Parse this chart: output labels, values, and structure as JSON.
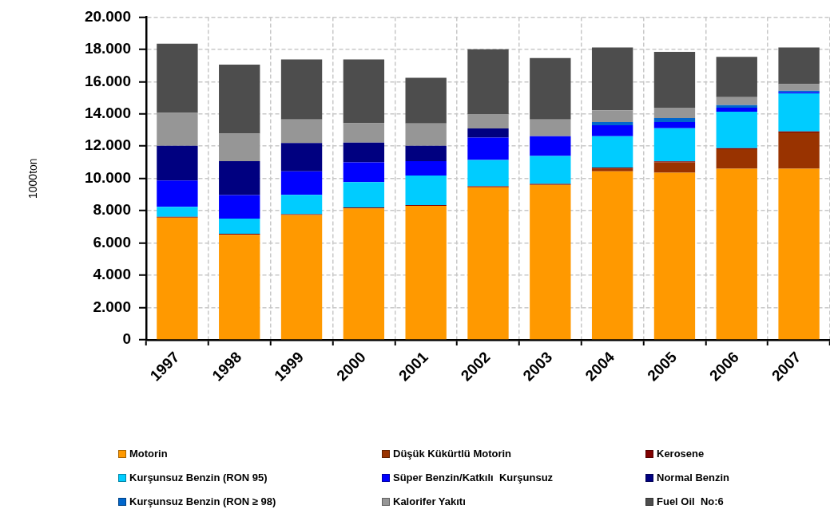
{
  "chart_data": {
    "type": "bar",
    "stacked": true,
    "ylabel": "1000ton",
    "categories": [
      "1997",
      "1998",
      "1999",
      "2000",
      "2001",
      "2002",
      "2003",
      "2004",
      "2005",
      "2006",
      "2007"
    ],
    "series": [
      {
        "name": "Motorin",
        "color": "#ff9900",
        "values": [
          7570,
          6510,
          7730,
          8140,
          8300,
          9450,
          9600,
          10440,
          10360,
          10600,
          10600
        ]
      },
      {
        "name": "Düşük Kükürtlü Motorin",
        "color": "#993300",
        "values": [
          0,
          0,
          0,
          0,
          0,
          0,
          0,
          180,
          640,
          1210,
          2250
        ]
      },
      {
        "name": "Kerosene",
        "color": "#800000",
        "values": [
          60,
          60,
          60,
          60,
          60,
          60,
          60,
          60,
          60,
          60,
          60
        ]
      },
      {
        "name": "Kurşunsuz Benzin (RON 95)",
        "color": "#00ccff",
        "values": [
          610,
          940,
          1190,
          1580,
          1820,
          1640,
          1740,
          1940,
          2050,
          2270,
          2360
        ]
      },
      {
        "name": "Süper Benzin/Katkılı  Kurşunsuz",
        "color": "#0000ff",
        "values": [
          1630,
          1460,
          1460,
          1220,
          890,
          1380,
          1220,
          680,
          390,
          240,
          80
        ]
      },
      {
        "name": "Normal Benzin",
        "color": "#000080",
        "values": [
          2160,
          2100,
          1760,
          1220,
          960,
          570,
          0,
          0,
          0,
          0,
          0
        ]
      },
      {
        "name": "Kurşunsuz Benzin (RON ≥ 98)",
        "color": "#0066cc",
        "values": [
          0,
          0,
          0,
          0,
          0,
          0,
          0,
          200,
          240,
          170,
          90
        ]
      },
      {
        "name": "Kalorifer Yakıtı",
        "color": "#969696",
        "values": [
          2030,
          1710,
          1460,
          1200,
          1380,
          890,
          1040,
          730,
          650,
          490,
          400
        ]
      },
      {
        "name": "Fuel Oil  No:6",
        "color": "#4d4d4d",
        "values": [
          4290,
          4280,
          3710,
          3950,
          2830,
          4020,
          3800,
          3890,
          3460,
          2500,
          2280
        ]
      }
    ],
    "ylim": [
      0,
      20000
    ],
    "yticks": [
      0,
      {
        "value": 2000,
        "label": "2.000"
      },
      {
        "value": 4000,
        "label": "4.000"
      },
      {
        "value": 6000,
        "label": "6.000"
      },
      {
        "value": 8000,
        "label": "8.000"
      },
      {
        "value": 10000,
        "label": "10.000"
      },
      {
        "value": 12000,
        "label": "12.000"
      },
      {
        "value": 14000,
        "label": "14.000"
      },
      {
        "value": 16000,
        "label": "16.000"
      },
      {
        "value": 18000,
        "label": "18.000"
      },
      {
        "value": 20000,
        "label": "20.000"
      }
    ],
    "grid": true,
    "legend": "bottom"
  }
}
